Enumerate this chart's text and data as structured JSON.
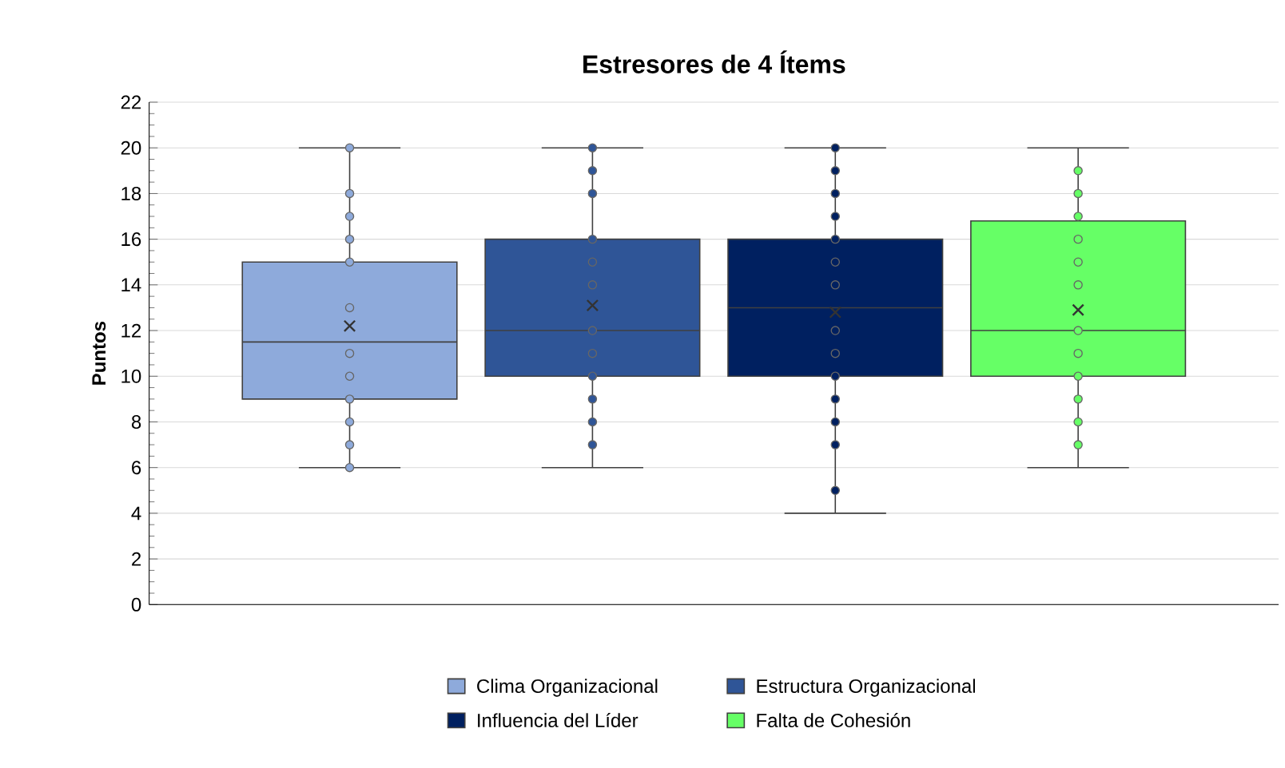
{
  "chart_data": {
    "type": "box",
    "title": "Estresores de 4 Ítems",
    "ylabel": "Puntos",
    "categories": [
      null
    ],
    "series": [
      {
        "name": "Clima Organizacional",
        "color": "#8eaadb",
        "boxes": [
          {
            "low": 6,
            "q1": 9,
            "median": 11.5,
            "q3": 15,
            "high": 20,
            "mean": 12.2,
            "outliers": [
              20,
              18,
              17,
              16,
              15,
              13,
              11,
              10,
              9,
              8,
              7,
              6
            ]
          }
        ]
      },
      {
        "name": "Estructura Organizacional",
        "color": "#2f5597",
        "boxes": [
          {
            "low": 6,
            "q1": 10,
            "median": 12,
            "q3": 16,
            "high": 20,
            "mean": 13.1,
            "outliers": [
              20,
              19,
              18,
              16,
              15,
              14,
              12,
              11,
              10,
              9,
              8,
              7
            ]
          }
        ]
      },
      {
        "name": "Influencia del Líder",
        "color": "#002060",
        "boxes": [
          {
            "low": 4,
            "q1": 10,
            "median": 13,
            "q3": 16,
            "high": 20,
            "mean": 12.8,
            "outliers": [
              20,
              19,
              18,
              17,
              16,
              15,
              14,
              12,
              11,
              10,
              9,
              8,
              7,
              5
            ]
          }
        ]
      },
      {
        "name": "Falta de Cohesión",
        "color": "#66ff66",
        "boxes": [
          {
            "low": 6,
            "q1": 10,
            "median": 12,
            "q3": 16.8,
            "high": 20,
            "mean": 12.9,
            "outliers": [
              19,
              18,
              17,
              16,
              15,
              14,
              12,
              11,
              10,
              9,
              8,
              7
            ]
          }
        ]
      }
    ],
    "ylim": [
      0,
      22
    ],
    "yticks": [
      0,
      2,
      4,
      6,
      8,
      10,
      12,
      14,
      16,
      18,
      20,
      22
    ],
    "grid": "y",
    "legend": "bottom"
  }
}
